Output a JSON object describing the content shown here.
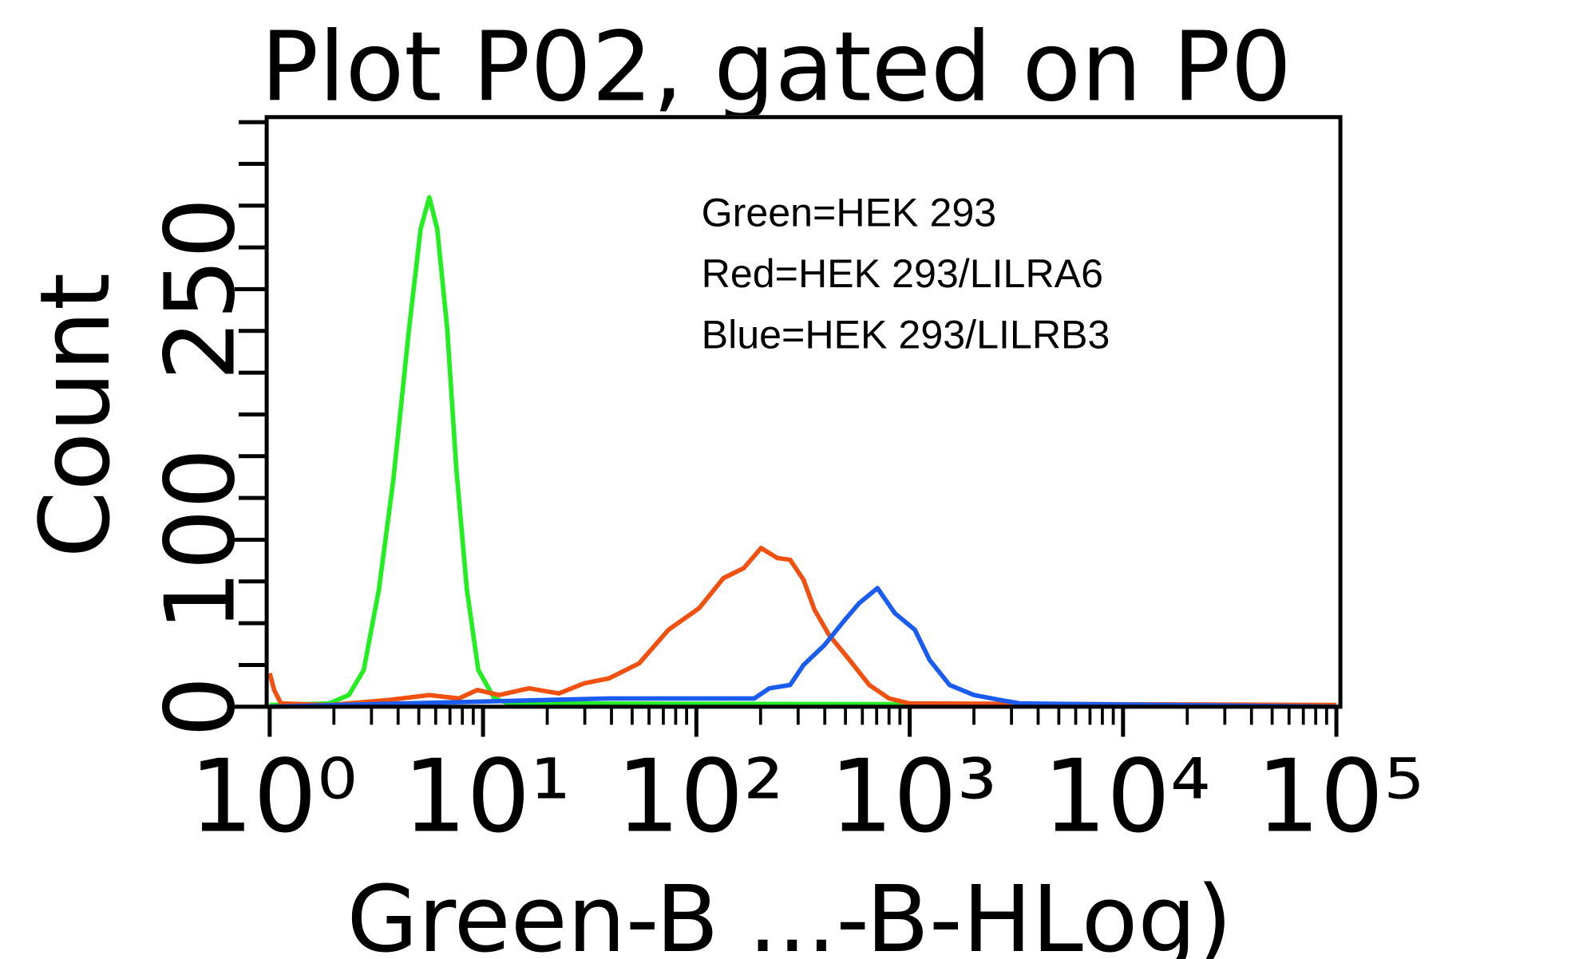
{
  "chart_data": {
    "type": "line",
    "title": "Plot P02, gated on P0",
    "x_label": "Green-B ...-B-HLog)",
    "y_label": "Count",
    "annotations": [
      "Green=HEK 293",
      "Red=HEK 293/LILRA6",
      "Blue=HEK 293/LILRB3"
    ],
    "xscale": "log",
    "xlim": [
      1,
      100000
    ],
    "xticks": [
      {
        "value": 1,
        "label": "10⁰"
      },
      {
        "value": 10,
        "label": "10¹"
      },
      {
        "value": 100,
        "label": "10²"
      },
      {
        "value": 1000,
        "label": "10³"
      },
      {
        "value": 10000,
        "label": "10⁴"
      },
      {
        "value": 100000,
        "label": "10⁵"
      }
    ],
    "xminorticks": [
      2,
      3,
      4,
      5,
      6,
      7,
      8,
      9,
      20,
      30,
      40,
      50,
      60,
      70,
      80,
      90,
      200,
      300,
      400,
      500,
      600,
      700,
      800,
      900,
      2000,
      3000,
      4000,
      5000,
      6000,
      7000,
      8000,
      9000,
      20000,
      30000,
      40000,
      50000,
      60000,
      70000,
      80000,
      90000
    ],
    "ylim": [
      0,
      353
    ],
    "yticks": [
      0,
      100,
      250
    ],
    "yminorticks": [
      25,
      50,
      75,
      125,
      150,
      175,
      200,
      225,
      275,
      300,
      325,
      350
    ],
    "series": [
      {
        "name": "Green",
        "color": "#22ee22",
        "x": [
          1,
          1.9,
          2.35,
          2.76,
          3.25,
          3.8,
          4.5,
          5.1,
          5.6,
          6.1,
          6.8,
          7.5,
          8.4,
          9.5,
          11.3,
          13.2,
          100000
        ],
        "values": [
          1,
          2,
          7,
          22,
          70,
          136,
          226,
          286,
          305,
          286,
          226,
          142,
          70,
          22,
          5,
          2,
          1
        ]
      },
      {
        "name": "Red",
        "color": "#f05010",
        "x": [
          1,
          1.05,
          1.13,
          1.9,
          3.6,
          5.6,
          7.7,
          9.4,
          11.9,
          16.4,
          22.7,
          29.8,
          39,
          54,
          74,
          103,
          134,
          167,
          201,
          240,
          275,
          318,
          358,
          419,
          522,
          647,
          800,
          995,
          100000
        ],
        "values": [
          20,
          10,
          2,
          1,
          4,
          7,
          5,
          10,
          7,
          11,
          8,
          14,
          17,
          26,
          46,
          59,
          77,
          83,
          95,
          89,
          88,
          76,
          58,
          43,
          28,
          13,
          5,
          2,
          1
        ]
      },
      {
        "name": "Blue",
        "color": "#1a5cf0",
        "x": [
          1,
          39,
          115,
          187,
          220,
          275,
          318,
          399,
          497,
          580,
          706,
          852,
          1058,
          1240,
          1540,
          2000,
          2660,
          3300,
          100000
        ],
        "values": [
          0,
          5,
          5,
          5,
          11,
          13,
          25,
          37,
          52,
          62,
          71,
          56,
          46,
          28,
          13,
          7,
          4,
          2,
          0
        ]
      }
    ]
  }
}
